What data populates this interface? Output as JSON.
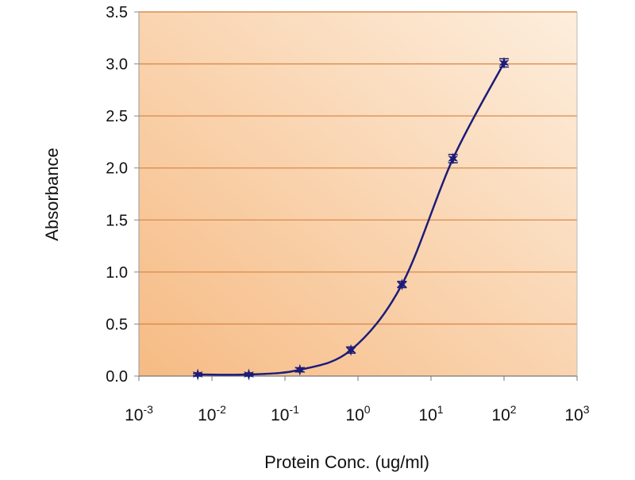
{
  "chart_data": {
    "type": "line",
    "title": "",
    "xlabel": "Protein Conc. (ug/ml)",
    "ylabel": "Absorbance",
    "x_scale": "log",
    "xlim": [
      0.001,
      1000
    ],
    "ylim": [
      0,
      3.5
    ],
    "x_ticks": [
      {
        "value": 0.001,
        "base": "10",
        "exp": "-3"
      },
      {
        "value": 0.01,
        "base": "10",
        "exp": "-2"
      },
      {
        "value": 0.1,
        "base": "10",
        "exp": "-1"
      },
      {
        "value": 1,
        "base": "10",
        "exp": "0"
      },
      {
        "value": 10,
        "base": "10",
        "exp": "1"
      },
      {
        "value": 100,
        "base": "10",
        "exp": "2"
      },
      {
        "value": 1000,
        "base": "10",
        "exp": "3"
      }
    ],
    "y_ticks": [
      "0.0",
      "0.5",
      "1.0",
      "1.5",
      "2.0",
      "2.5",
      "3.0",
      "3.5"
    ],
    "grid": "horizontal",
    "series": [
      {
        "x": [
          0.0064,
          0.032,
          0.16,
          0.8,
          4,
          20,
          100
        ],
        "y": [
          0.015,
          0.015,
          0.06,
          0.25,
          0.88,
          2.09,
          3.01
        ],
        "error": [
          0.01,
          0.01,
          0.02,
          0.03,
          0.03,
          0.04,
          0.04
        ],
        "marker": "star",
        "smooth": true
      }
    ],
    "colors": {
      "line": "#1c1c78",
      "grid": "#d98a4c",
      "bg_dark": "#f6bb84",
      "bg_light": "#fdeedd"
    }
  }
}
